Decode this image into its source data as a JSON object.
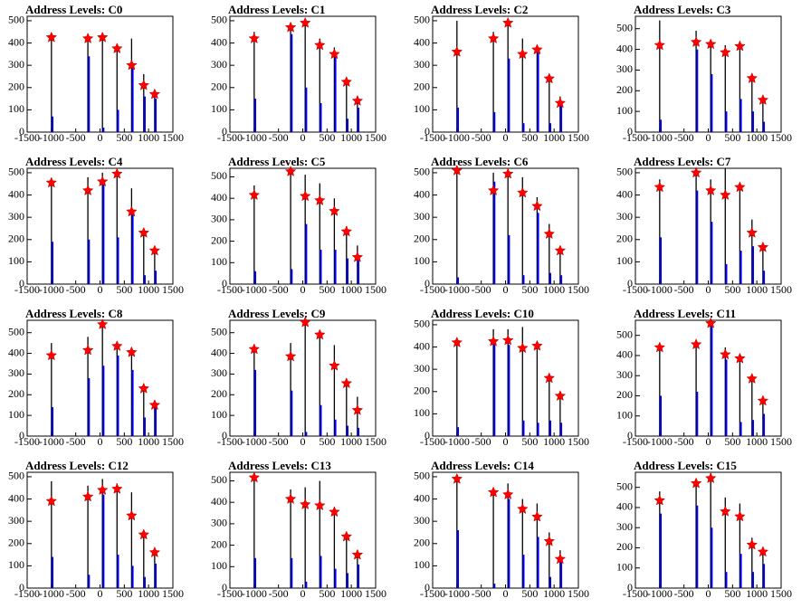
{
  "chart_data": [
    {
      "type": "bar",
      "title": "Address Levels: C0",
      "x": [
        -1000,
        -250,
        50,
        350,
        650,
        900,
        1125
      ],
      "series": [
        {
          "color": "#000000",
          "values": [
            430,
            430,
            440,
            390,
            420,
            260,
            175
          ]
        },
        {
          "color": "#0000ff",
          "values": [
            70,
            340,
            20,
            100,
            300,
            160,
            150
          ]
        },
        {
          "color": "#ff0000",
          "marker": "star",
          "values": [
            425,
            420,
            425,
            375,
            300,
            210,
            170
          ]
        }
      ],
      "xlim": [
        -1500,
        1500
      ],
      "xticks": [
        -1500,
        -1000,
        -500,
        0,
        500,
        1000,
        1500
      ],
      "ylim": [
        0,
        520
      ],
      "yticks": [
        0,
        100,
        200,
        300,
        400,
        500
      ]
    },
    {
      "type": "bar",
      "title": "Address Levels: C1",
      "x": [
        -1000,
        -250,
        50,
        350,
        650,
        900,
        1125
      ],
      "series": [
        {
          "color": "#000000",
          "values": [
            450,
            480,
            500,
            420,
            380,
            240,
            160
          ]
        },
        {
          "color": "#0000ff",
          "values": [
            150,
            440,
            200,
            130,
            350,
            60,
            110
          ]
        },
        {
          "color": "#ff0000",
          "marker": "star",
          "values": [
            420,
            470,
            490,
            390,
            350,
            225,
            140
          ]
        }
      ],
      "xlim": [
        -1500,
        1500
      ],
      "xticks": [
        -1500,
        -1000,
        -500,
        0,
        500,
        1000,
        1500
      ],
      "ylim": [
        0,
        520
      ],
      "yticks": [
        0,
        100,
        200,
        300,
        400,
        500
      ]
    },
    {
      "type": "bar",
      "title": "Address Levels: C2",
      "x": [
        -1000,
        -250,
        50,
        350,
        650,
        900,
        1125
      ],
      "series": [
        {
          "color": "#000000",
          "values": [
            500,
            450,
            500,
            420,
            380,
            250,
            160
          ]
        },
        {
          "color": "#0000ff",
          "values": [
            110,
            90,
            330,
            40,
            370,
            40,
            120
          ]
        },
        {
          "color": "#ff0000",
          "marker": "star",
          "values": [
            360,
            420,
            490,
            350,
            370,
            240,
            130
          ]
        }
      ],
      "xlim": [
        -1500,
        1500
      ],
      "xticks": [
        -1500,
        -1000,
        -500,
        0,
        500,
        1000,
        1500
      ],
      "ylim": [
        0,
        520
      ],
      "yticks": [
        0,
        100,
        200,
        300,
        400,
        500
      ]
    },
    {
      "type": "bar",
      "title": "Address Levels: C3",
      "x": [
        -1000,
        -250,
        50,
        350,
        650,
        900,
        1125
      ],
      "series": [
        {
          "color": "#000000",
          "values": [
            540,
            490,
            440,
            420,
            430,
            270,
            170
          ]
        },
        {
          "color": "#0000ff",
          "values": [
            60,
            400,
            280,
            100,
            160,
            100,
            50
          ]
        },
        {
          "color": "#ff0000",
          "marker": "star",
          "values": [
            420,
            435,
            425,
            385,
            415,
            260,
            155
          ]
        }
      ],
      "xlim": [
        -1500,
        1500
      ],
      "xticks": [
        -1500,
        -1000,
        -500,
        0,
        500,
        1000,
        1500
      ],
      "ylim": [
        0,
        560
      ],
      "yticks": [
        0,
        100,
        200,
        300,
        400,
        500
      ]
    },
    {
      "type": "bar",
      "title": "Address Levels: C4",
      "x": [
        -1000,
        -250,
        50,
        350,
        650,
        900,
        1125
      ],
      "series": [
        {
          "color": "#000000",
          "values": [
            460,
            480,
            500,
            500,
            430,
            240,
            160
          ]
        },
        {
          "color": "#0000ff",
          "values": [
            190,
            200,
            460,
            210,
            320,
            40,
            60
          ]
        },
        {
          "color": "#ff0000",
          "marker": "star",
          "values": [
            455,
            420,
            460,
            495,
            325,
            230,
            150
          ]
        }
      ],
      "xlim": [
        -1500,
        1500
      ],
      "xticks": [
        -1500,
        -1000,
        -500,
        0,
        500,
        1000,
        1500
      ],
      "ylim": [
        0,
        520
      ],
      "yticks": [
        0,
        100,
        200,
        300,
        400,
        500
      ]
    },
    {
      "type": "bar",
      "title": "Address Levels: C5",
      "x": [
        -1000,
        -250,
        50,
        350,
        650,
        900,
        1125
      ],
      "series": [
        {
          "color": "#000000",
          "values": [
            460,
            520,
            510,
            470,
            400,
            270,
            180
          ]
        },
        {
          "color": "#0000ff",
          "values": [
            60,
            70,
            280,
            160,
            160,
            120,
            110
          ]
        },
        {
          "color": "#ff0000",
          "marker": "star",
          "values": [
            415,
            525,
            410,
            390,
            340,
            245,
            125
          ]
        }
      ],
      "xlim": [
        -1500,
        1500
      ],
      "xticks": [
        -1500,
        -1000,
        -500,
        0,
        500,
        1000,
        1500
      ],
      "ylim": [
        0,
        540
      ],
      "yticks": [
        0,
        100,
        200,
        300,
        400,
        500
      ]
    },
    {
      "type": "bar",
      "title": "Address Levels: C6",
      "x": [
        -1000,
        -250,
        50,
        350,
        650,
        900,
        1125
      ],
      "series": [
        {
          "color": "#000000",
          "values": [
            510,
            500,
            500,
            480,
            390,
            270,
            170
          ]
        },
        {
          "color": "#0000ff",
          "values": [
            30,
            460,
            220,
            40,
            320,
            50,
            40
          ]
        },
        {
          "color": "#ff0000",
          "marker": "star",
          "values": [
            510,
            420,
            495,
            410,
            350,
            225,
            150
          ]
        }
      ],
      "xlim": [
        -1500,
        1500
      ],
      "xticks": [
        -1500,
        -1000,
        -500,
        0,
        500,
        1000,
        1500
      ],
      "ylim": [
        0,
        520
      ],
      "yticks": [
        0,
        100,
        200,
        300,
        400,
        500
      ]
    },
    {
      "type": "bar",
      "title": "Address Levels: C7",
      "x": [
        -1000,
        -250,
        50,
        350,
        650,
        900,
        1125
      ],
      "series": [
        {
          "color": "#000000",
          "values": [
            470,
            510,
            470,
            520,
            440,
            290,
            170
          ]
        },
        {
          "color": "#0000ff",
          "values": [
            210,
            420,
            280,
            90,
            150,
            170,
            60
          ]
        },
        {
          "color": "#ff0000",
          "marker": "star",
          "values": [
            435,
            500,
            420,
            400,
            435,
            230,
            165
          ]
        }
      ],
      "xlim": [
        -1500,
        1500
      ],
      "xticks": [
        -1500,
        -1000,
        -500,
        0,
        500,
        1000,
        1500
      ],
      "ylim": [
        0,
        520
      ],
      "yticks": [
        0,
        100,
        200,
        300,
        400,
        500
      ]
    },
    {
      "type": "bar",
      "title": "Address Levels: C8",
      "x": [
        -1000,
        -250,
        50,
        350,
        650,
        900,
        1125
      ],
      "series": [
        {
          "color": "#000000",
          "values": [
            450,
            480,
            540,
            450,
            430,
            240,
            170
          ]
        },
        {
          "color": "#0000ff",
          "values": [
            140,
            280,
            340,
            390,
            320,
            90,
            150
          ]
        },
        {
          "color": "#ff0000",
          "marker": "star",
          "values": [
            390,
            415,
            540,
            435,
            405,
            230,
            150
          ]
        }
      ],
      "xlim": [
        -1500,
        1500
      ],
      "xticks": [
        -1500,
        -1000,
        -500,
        0,
        500,
        1000,
        1500
      ],
      "ylim": [
        0,
        560
      ],
      "yticks": [
        0,
        100,
        200,
        300,
        400,
        500
      ]
    },
    {
      "type": "bar",
      "title": "Address Levels: C9",
      "x": [
        -1000,
        -250,
        50,
        350,
        650,
        900,
        1125
      ],
      "series": [
        {
          "color": "#000000",
          "values": [
            440,
            450,
            560,
            490,
            440,
            270,
            190
          ]
        },
        {
          "color": "#0000ff",
          "values": [
            320,
            220,
            20,
            150,
            80,
            50,
            40
          ]
        },
        {
          "color": "#ff0000",
          "marker": "star",
          "values": [
            420,
            385,
            550,
            490,
            340,
            255,
            125
          ]
        }
      ],
      "xlim": [
        -1500,
        1500
      ],
      "xticks": [
        -1500,
        -1000,
        -500,
        0,
        500,
        1000,
        1500
      ],
      "ylim": [
        0,
        560
      ],
      "yticks": [
        0,
        100,
        200,
        300,
        400,
        500
      ]
    },
    {
      "type": "bar",
      "title": "Address Levels: C10",
      "x": [
        -1000,
        -250,
        50,
        350,
        650,
        900,
        1125
      ],
      "series": [
        {
          "color": "#000000",
          "values": [
            420,
            480,
            480,
            490,
            420,
            270,
            190
          ]
        },
        {
          "color": "#0000ff",
          "values": [
            40,
            410,
            410,
            70,
            60,
            70,
            60
          ]
        },
        {
          "color": "#ff0000",
          "marker": "star",
          "values": [
            420,
            425,
            430,
            395,
            405,
            260,
            180
          ]
        }
      ],
      "xlim": [
        -1500,
        1500
      ],
      "xticks": [
        -1500,
        -1000,
        -500,
        0,
        500,
        1000,
        1500
      ],
      "ylim": [
        0,
        520
      ],
      "yticks": [
        0,
        100,
        200,
        300,
        400,
        500
      ]
    },
    {
      "type": "bar",
      "title": "Address Levels: C11",
      "x": [
        -1000,
        -250,
        50,
        350,
        650,
        900,
        1125
      ],
      "series": [
        {
          "color": "#000000",
          "values": [
            460,
            470,
            570,
            440,
            400,
            300,
            190
          ]
        },
        {
          "color": "#0000ff",
          "values": [
            200,
            220,
            560,
            380,
            70,
            80,
            110
          ]
        },
        {
          "color": "#ff0000",
          "marker": "star",
          "values": [
            440,
            455,
            560,
            405,
            385,
            285,
            175
          ]
        }
      ],
      "xlim": [
        -1500,
        1500
      ],
      "xticks": [
        -1500,
        -1000,
        -500,
        0,
        500,
        1000,
        1500
      ],
      "ylim": [
        0,
        575
      ],
      "yticks": [
        0,
        100,
        200,
        300,
        400,
        500
      ]
    },
    {
      "type": "bar",
      "title": "Address Levels: C12",
      "x": [
        -1000,
        -250,
        50,
        350,
        650,
        900,
        1125
      ],
      "series": [
        {
          "color": "#000000",
          "values": [
            480,
            460,
            490,
            470,
            430,
            250,
            170
          ]
        },
        {
          "color": "#0000ff",
          "values": [
            140,
            60,
            420,
            150,
            100,
            50,
            110
          ]
        },
        {
          "color": "#ff0000",
          "marker": "star",
          "values": [
            390,
            410,
            440,
            445,
            325,
            240,
            160
          ]
        }
      ],
      "xlim": [
        -1500,
        1500
      ],
      "xticks": [
        -1500,
        -1000,
        -500,
        0,
        500,
        1000,
        1500
      ],
      "ylim": [
        0,
        520
      ],
      "yticks": [
        0,
        100,
        200,
        300,
        400,
        500
      ]
    },
    {
      "type": "bar",
      "title": "Address Levels: C13",
      "x": [
        -1000,
        -250,
        50,
        350,
        650,
        900,
        1125
      ],
      "series": [
        {
          "color": "#000000",
          "values": [
            520,
            460,
            470,
            500,
            370,
            250,
            160
          ]
        },
        {
          "color": "#0000ff",
          "values": [
            140,
            140,
            30,
            150,
            90,
            70,
            110
          ]
        },
        {
          "color": "#ff0000",
          "marker": "star",
          "values": [
            515,
            415,
            390,
            385,
            355,
            240,
            155
          ]
        }
      ],
      "xlim": [
        -1500,
        1500
      ],
      "xticks": [
        -1500,
        -1000,
        -500,
        0,
        500,
        1000,
        1500
      ],
      "ylim": [
        0,
        540
      ],
      "yticks": [
        0,
        100,
        200,
        300,
        400,
        500
      ]
    },
    {
      "type": "bar",
      "title": "Address Levels: C14",
      "x": [
        -1000,
        -250,
        50,
        350,
        650,
        900,
        1125
      ],
      "series": [
        {
          "color": "#000000",
          "values": [
            500,
            440,
            470,
            400,
            380,
            250,
            170
          ]
        },
        {
          "color": "#0000ff",
          "values": [
            260,
            20,
            400,
            150,
            230,
            50,
            120
          ]
        },
        {
          "color": "#ff0000",
          "marker": "star",
          "values": [
            490,
            430,
            420,
            355,
            320,
            210,
            130
          ]
        }
      ],
      "xlim": [
        -1500,
        1500
      ],
      "xticks": [
        -1500,
        -1000,
        -500,
        0,
        500,
        1000,
        1500
      ],
      "ylim": [
        0,
        520
      ],
      "yticks": [
        0,
        100,
        200,
        300,
        400,
        500
      ]
    },
    {
      "type": "bar",
      "title": "Address Levels: C15",
      "x": [
        -1000,
        -250,
        50,
        350,
        650,
        900,
        1125
      ],
      "series": [
        {
          "color": "#000000",
          "values": [
            480,
            540,
            570,
            450,
            420,
            250,
            190
          ]
        },
        {
          "color": "#0000ff",
          "values": [
            370,
            410,
            300,
            80,
            170,
            80,
            120
          ]
        },
        {
          "color": "#ff0000",
          "marker": "star",
          "values": [
            435,
            520,
            545,
            380,
            355,
            215,
            180
          ]
        }
      ],
      "xlim": [
        -1500,
        1500
      ],
      "xticks": [
        -1500,
        -1000,
        -500,
        0,
        500,
        1000,
        1500
      ],
      "ylim": [
        0,
        575
      ],
      "yticks": [
        0,
        100,
        200,
        300,
        400,
        500
      ]
    }
  ]
}
